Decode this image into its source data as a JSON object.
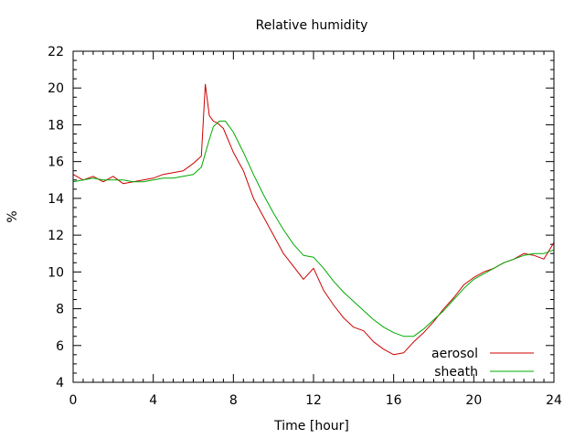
{
  "chart_data": {
    "type": "line",
    "title": "Relative humidity",
    "xlabel": "Time [hour]",
    "ylabel": "%",
    "xlim": [
      0,
      24
    ],
    "ylim": [
      4,
      22
    ],
    "xticks": [
      0,
      4,
      8,
      12,
      16,
      20,
      24
    ],
    "yticks": [
      4,
      6,
      8,
      10,
      12,
      14,
      16,
      18,
      20,
      22
    ],
    "grid": false,
    "legend_position": "bottom-right",
    "series": [
      {
        "name": "aerosol",
        "color": "#cc0000",
        "x": [
          0,
          0.5,
          1,
          1.5,
          2,
          2.5,
          3,
          3.5,
          4,
          4.5,
          5,
          5.5,
          6,
          6.4,
          6.6,
          6.8,
          7,
          7.2,
          7.5,
          8,
          8.5,
          9,
          9.5,
          10,
          10.5,
          11,
          11.5,
          12,
          12.5,
          13,
          13.5,
          14,
          14.5,
          15,
          15.5,
          16,
          16.5,
          17,
          17.5,
          18,
          18.5,
          19,
          19.5,
          20,
          20.5,
          21,
          21.5,
          22,
          22.5,
          23,
          23.5,
          24
        ],
        "y": [
          15.3,
          15.0,
          15.2,
          14.9,
          15.2,
          14.8,
          14.9,
          15.0,
          15.1,
          15.3,
          15.4,
          15.5,
          15.9,
          16.3,
          20.2,
          18.5,
          18.2,
          18.1,
          17.8,
          16.5,
          15.5,
          14.0,
          13.0,
          12.0,
          11.0,
          10.3,
          9.6,
          10.2,
          9.0,
          8.2,
          7.5,
          7.0,
          6.8,
          6.2,
          5.8,
          5.5,
          5.6,
          6.2,
          6.7,
          7.3,
          8.0,
          8.6,
          9.3,
          9.7,
          10.0,
          10.2,
          10.5,
          10.7,
          11.0,
          10.9,
          10.7,
          11.6
        ]
      },
      {
        "name": "sheath",
        "color": "#00aa00",
        "x": [
          0,
          0.5,
          1,
          1.5,
          2,
          2.5,
          3,
          3.5,
          4,
          4.5,
          5,
          5.5,
          6,
          6.4,
          6.8,
          7,
          7.3,
          7.6,
          8,
          8.5,
          9,
          9.5,
          10,
          10.5,
          11,
          11.5,
          12,
          12.5,
          13,
          13.5,
          14,
          14.5,
          15,
          15.5,
          16,
          16.5,
          17,
          17.5,
          18,
          18.5,
          19,
          19.5,
          20,
          20.5,
          21,
          21.5,
          22,
          22.5,
          23,
          23.5,
          24
        ],
        "y": [
          14.9,
          15.0,
          15.1,
          15.0,
          15.0,
          15.0,
          14.9,
          14.9,
          15.0,
          15.1,
          15.1,
          15.2,
          15.3,
          15.7,
          17.2,
          17.9,
          18.2,
          18.2,
          17.6,
          16.5,
          15.3,
          14.2,
          13.2,
          12.3,
          11.5,
          10.9,
          10.8,
          10.2,
          9.5,
          8.9,
          8.4,
          7.9,
          7.4,
          7.0,
          6.7,
          6.5,
          6.5,
          6.9,
          7.4,
          7.9,
          8.5,
          9.1,
          9.6,
          9.9,
          10.2,
          10.5,
          10.7,
          10.9,
          11.0,
          11.0,
          11.2
        ]
      }
    ]
  }
}
